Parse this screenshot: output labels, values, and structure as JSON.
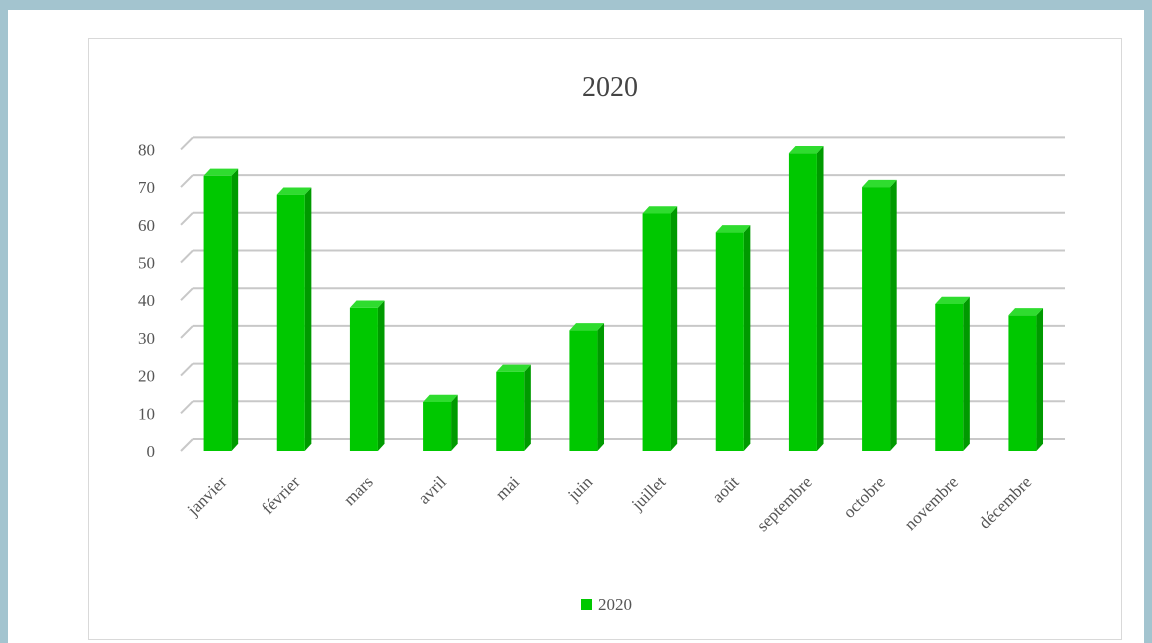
{
  "chart_data": {
    "type": "bar",
    "title": "2020",
    "xlabel": "",
    "ylabel": "",
    "categories": [
      "janvier",
      "février",
      "mars",
      "avril",
      "mai",
      "juin",
      "juillet",
      "août",
      "septembre",
      "octobre",
      "novembre",
      "décembre"
    ],
    "series": [
      {
        "name": "2020",
        "values": [
          73,
          68,
          38,
          13,
          21,
          32,
          63,
          58,
          79,
          70,
          39,
          36
        ]
      }
    ],
    "ylim": [
      0,
      80
    ],
    "yticks": [
      "0",
      "10",
      "20",
      "30",
      "40",
      "50",
      "60",
      "70",
      "80"
    ],
    "grid": true,
    "legend": "bottom",
    "style": "3d-column",
    "colors": {
      "bar_front": "#00c800",
      "bar_top": "#2fdc2f",
      "bar_side": "#009a00",
      "grid": "#c8c8c8",
      "background": "#a3c4cf"
    }
  }
}
